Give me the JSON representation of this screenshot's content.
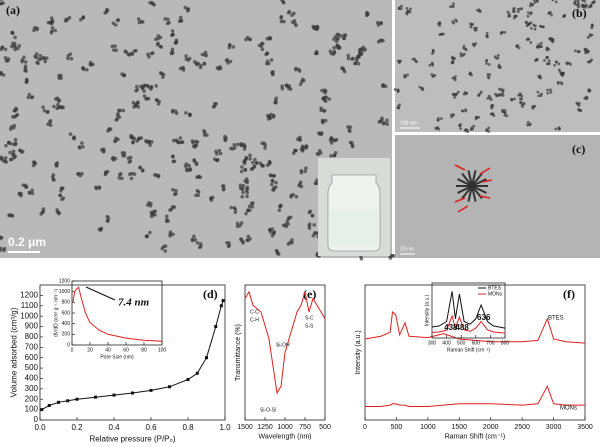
{
  "images": [
    {
      "label": "(a)",
      "scale_bar": "0.2 μm"
    },
    {
      "label": "(b)",
      "scale_bar": "100 nm"
    },
    {
      "label": "(c)",
      "scale_bar": "20 nm"
    }
  ],
  "chart_data": [
    {
      "type": "line",
      "label": "(d)",
      "ylabel": "Volume adsorbed (cm³/g)",
      "xlabel": "Relative pressure (P/P₀)",
      "x": [
        0.01,
        0.05,
        0.1,
        0.15,
        0.2,
        0.3,
        0.4,
        0.5,
        0.6,
        0.7,
        0.8,
        0.85,
        0.9,
        0.95,
        0.98,
        0.99
      ],
      "values": [
        100,
        140,
        170,
        185,
        200,
        220,
        240,
        260,
        285,
        320,
        390,
        450,
        600,
        900,
        1100,
        1150
      ],
      "color": "#111111",
      "markers": true,
      "xlim": [
        0,
        1.0
      ],
      "xticks": [
        {
          "value": 0,
          "label": "0.0"
        },
        0.2,
        0.4,
        0.6,
        0.8,
        {
          "value": 1,
          "label": "1.0"
        }
      ],
      "ylim": [
        0,
        1300
      ],
      "yticks": [
        0,
        100,
        200,
        300,
        400,
        500,
        600,
        700,
        800,
        900,
        1000,
        1100,
        1200
      ]
    },
    {
      "type": "line",
      "ylabel": "dV/dD (cm³ g⁻¹ nm⁻¹)",
      "xlabel": "Pore Size (nm)",
      "annotation": "7.4 nm",
      "x": [
        1,
        3,
        5,
        7.4,
        10,
        15,
        20,
        30,
        40,
        60,
        80,
        100
      ],
      "values": [
        800,
        1000,
        1050,
        1080,
        900,
        600,
        420,
        280,
        200,
        130,
        90,
        70
      ],
      "color": "#e02020",
      "xlim": [
        0,
        100
      ],
      "xticks": [
        0,
        20,
        40,
        60,
        80,
        100
      ],
      "ylim": [
        0,
        1200
      ],
      "yticks": [
        0,
        200,
        400,
        600,
        800,
        1000,
        1200
      ]
    },
    {
      "type": "line",
      "label": "(e)",
      "ylabel": "Transmittance (%)",
      "xlabel": "Wavelength (nm)",
      "annotations": [
        "C-C",
        "C-H",
        "Si-OH",
        "S-C",
        "S-S",
        "Si-O-Si"
      ],
      "x": [
        1500,
        1450,
        1400,
        1300,
        1200,
        1100,
        1050,
        1000,
        950,
        900,
        850,
        800,
        750,
        700,
        650,
        600,
        550,
        500
      ],
      "values": [
        90,
        95,
        85,
        80,
        60,
        20,
        25,
        50,
        60,
        70,
        80,
        85,
        95,
        80,
        90,
        85,
        80,
        75
      ],
      "color": "#e02020",
      "xlim": [
        1500,
        500
      ],
      "xticks": [
        1500,
        1250,
        1000,
        750,
        500
      ],
      "ylim": [
        0,
        100
      ]
    },
    {
      "type": "line",
      "label": "(f)",
      "ylabel": "Intensity (a.u.)",
      "xlabel": "Raman Shift (cm⁻¹)",
      "x": [
        0,
        250,
        400,
        438,
        488,
        550,
        636,
        700,
        1000,
        1250,
        1500,
        2000,
        2500,
        2750,
        2900,
        3000,
        3200,
        3500
      ],
      "series": [
        {
          "name": "BTES",
          "color": "#e02020",
          "values": [
            60,
            62,
            65,
            80,
            78,
            63,
            72,
            62,
            61,
            64,
            60,
            58,
            58,
            59,
            75,
            60,
            58,
            57
          ]
        },
        {
          "name": "MONs",
          "color": "#e02020",
          "values": [
            10,
            10,
            11,
            12,
            12,
            11,
            11,
            10,
            10,
            11,
            12,
            12,
            11,
            12,
            25,
            12,
            11,
            11
          ]
        }
      ],
      "xlim": [
        0,
        3500
      ],
      "xticks": [
        0,
        500,
        1000,
        1500,
        2000,
        2500,
        3000,
        3500
      ],
      "ylim": [
        0,
        100
      ]
    },
    {
      "type": "line",
      "ylabel": "Intensity (a.u.)",
      "xlabel": "Raman Shift (cm⁻¹)",
      "annotations": [
        "438",
        "488",
        "636"
      ],
      "x": [
        300,
        350,
        400,
        438,
        460,
        488,
        520,
        560,
        600,
        636,
        680,
        720,
        760,
        800
      ],
      "series": [
        {
          "name": "BTES",
          "color": "#111111",
          "values": [
            20,
            22,
            30,
            85,
            35,
            80,
            30,
            25,
            35,
            60,
            30,
            22,
            20,
            18
          ]
        },
        {
          "name": "MONs",
          "color": "#e02020",
          "values": [
            10,
            11,
            14,
            40,
            18,
            38,
            15,
            12,
            18,
            30,
            15,
            11,
            10,
            9
          ]
        }
      ],
      "xlim": [
        300,
        800
      ],
      "xticks": [
        300,
        400,
        500,
        600,
        700,
        800
      ],
      "ylim": [
        0,
        100
      ]
    }
  ]
}
